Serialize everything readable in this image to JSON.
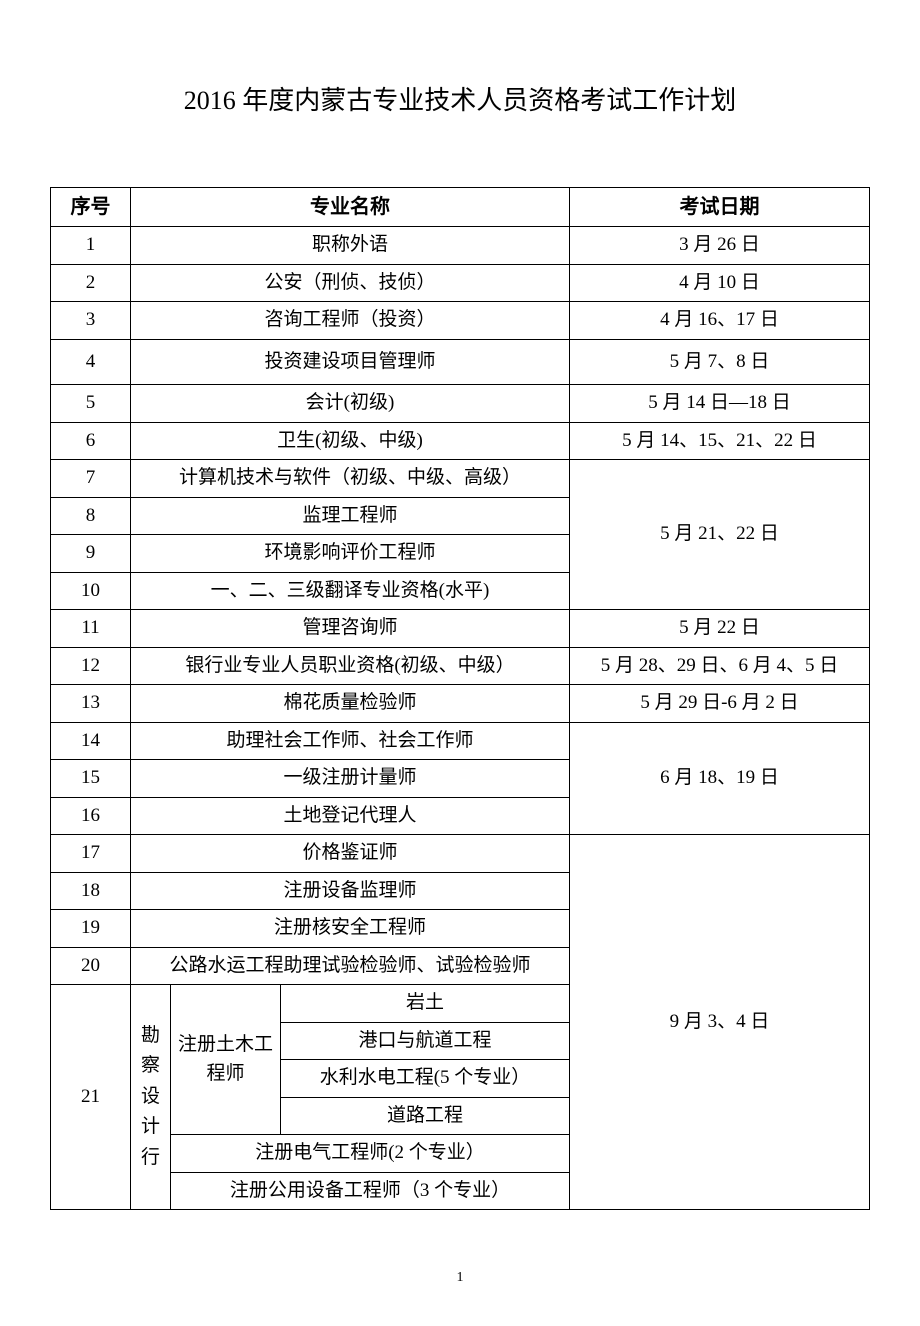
{
  "title": "2016 年度内蒙古专业技术人员资格考试工作计划",
  "headers": {
    "seq": "序号",
    "name": "专业名称",
    "date": "考试日期"
  },
  "rows": {
    "r1": {
      "seq": "1",
      "name": "职称外语",
      "date": "3 月 26 日"
    },
    "r2": {
      "seq": "2",
      "name": "公安（刑侦、技侦）",
      "date": "4 月 10 日"
    },
    "r3": {
      "seq": "3",
      "name": "咨询工程师（投资）",
      "date": "4 月 16、17 日"
    },
    "r4": {
      "seq": "4",
      "name": "投资建设项目管理师",
      "date": "5 月 7、8 日"
    },
    "r5": {
      "seq": "5",
      "name": "会计(初级)",
      "date": "5 月 14 日—18 日"
    },
    "r6": {
      "seq": "6",
      "name": "卫生(初级、中级)",
      "date": "5 月 14、15、21、22 日"
    },
    "r7": {
      "seq": "7",
      "name": "计算机技术与软件（初级、中级、高级）"
    },
    "r8": {
      "seq": "8",
      "name": "监理工程师"
    },
    "r9": {
      "seq": "9",
      "name": "环境影响评价工程师"
    },
    "r10": {
      "seq": "10",
      "name": "一、二、三级翻译专业资格(水平)"
    },
    "date_7_10": "5 月 21、22 日",
    "r11": {
      "seq": "11",
      "name": "管理咨询师",
      "date": "5 月 22 日"
    },
    "r12": {
      "seq": "12",
      "name": "银行业专业人员职业资格(初级、中级）",
      "date": "5 月 28、29 日、6 月 4、5 日"
    },
    "r13": {
      "seq": "13",
      "name": "棉花质量检验师",
      "date": "5 月 29 日-6 月 2 日"
    },
    "r14": {
      "seq": "14",
      "name": "助理社会工作师、社会工作师"
    },
    "r15": {
      "seq": "15",
      "name": "一级注册计量师"
    },
    "r16": {
      "seq": "16",
      "name": "土地登记代理人"
    },
    "date_14_16": "6 月 18、19 日",
    "r17": {
      "seq": "17",
      "name": "价格鉴证师"
    },
    "r18": {
      "seq": "18",
      "name": "注册设备监理师"
    },
    "r19": {
      "seq": "19",
      "name": "注册核安全工程师"
    },
    "r20": {
      "seq": "20",
      "name": "公路水运工程助理试验检验师、试验检验师"
    },
    "r21": {
      "seq": "21",
      "group1": "勘察设计行",
      "group2": "注册土木工程师",
      "sub1": "岩土",
      "sub2": "港口与航道工程",
      "sub3": "水利水电工程(5 个专业）",
      "sub4": "道路工程",
      "sub5": "注册电气工程师(2 个专业）",
      "sub6": "注册公用设备工程师（3 个专业）"
    },
    "date_17_21": "9 月 3、4 日"
  },
  "pageNumber": "1"
}
